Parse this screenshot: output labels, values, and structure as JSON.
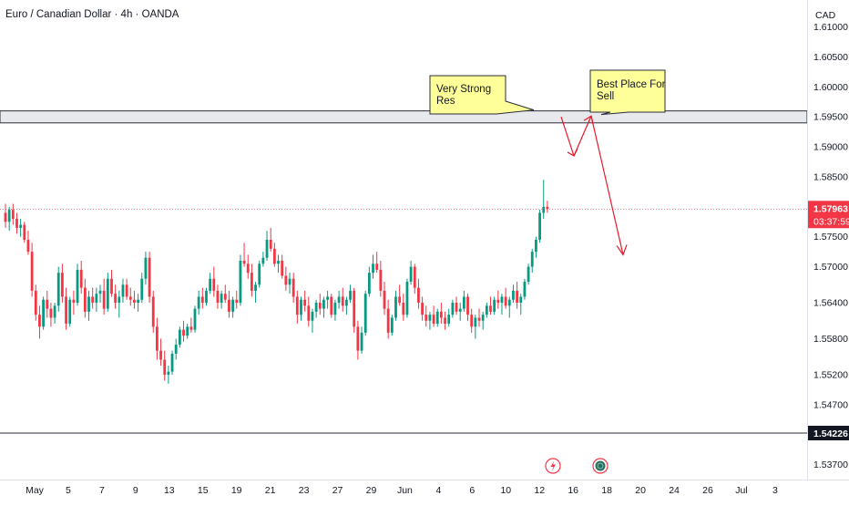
{
  "header": {
    "symbol_title": "Euro / Canadian Dollar · 4h · OANDA",
    "currency": "CAD"
  },
  "chart_data": {
    "type": "candlestick",
    "price_axis": {
      "ylim": [
        1.5345,
        1.6145
      ],
      "ticks": [
        "1.61000",
        "1.60500",
        "1.60000",
        "1.59500",
        "1.59000",
        "1.58500",
        "1.57500",
        "1.57000",
        "1.56400",
        "1.55800",
        "1.55200",
        "1.54700",
        "1.53700"
      ],
      "current_price": "1.57963",
      "countdown": "03:37:59",
      "level_label": "1.54226"
    },
    "time_axis": {
      "labels": [
        "May",
        "5",
        "7",
        "9",
        "13",
        "15",
        "19",
        "21",
        "23",
        "27",
        "29",
        "Jun",
        "4",
        "6",
        "10",
        "12",
        "16",
        "18",
        "20",
        "24",
        "26",
        "Jul",
        "3"
      ],
      "bars_visible": 145
    },
    "candles_ohlc": [
      [
        1.579,
        1.5805,
        1.5765,
        1.5775
      ],
      [
        1.5775,
        1.58,
        1.576,
        1.5795
      ],
      [
        1.5795,
        1.5805,
        1.577,
        1.578
      ],
      [
        1.578,
        1.579,
        1.5755,
        1.5765
      ],
      [
        1.5765,
        1.578,
        1.575,
        1.577
      ],
      [
        1.577,
        1.5775,
        1.574,
        1.5745
      ],
      [
        1.5745,
        1.576,
        1.572,
        1.5725
      ],
      [
        1.5725,
        1.574,
        1.565,
        1.566
      ],
      [
        1.566,
        1.567,
        1.561,
        1.562
      ],
      [
        1.562,
        1.5635,
        1.558,
        1.56
      ],
      [
        1.56,
        1.565,
        1.5595,
        1.5645
      ],
      [
        1.5645,
        1.566,
        1.5615,
        1.563
      ],
      [
        1.563,
        1.564,
        1.56,
        1.5615
      ],
      [
        1.5615,
        1.564,
        1.5605,
        1.5635
      ],
      [
        1.5635,
        1.57,
        1.5625,
        1.569
      ],
      [
        1.569,
        1.5705,
        1.564,
        1.565
      ],
      [
        1.565,
        1.5665,
        1.5595,
        1.5605
      ],
      [
        1.5605,
        1.565,
        1.56,
        1.5645
      ],
      [
        1.5645,
        1.566,
        1.562,
        1.564
      ],
      [
        1.564,
        1.5705,
        1.5635,
        1.5695
      ],
      [
        1.5695,
        1.571,
        1.5655,
        1.5665
      ],
      [
        1.5665,
        1.568,
        1.5615,
        1.5625
      ],
      [
        1.5625,
        1.566,
        1.561,
        1.565
      ],
      [
        1.565,
        1.5665,
        1.563,
        1.564
      ],
      [
        1.564,
        1.5665,
        1.5625,
        1.5655
      ],
      [
        1.5655,
        1.567,
        1.564,
        1.566
      ],
      [
        1.566,
        1.568,
        1.562,
        1.563
      ],
      [
        1.563,
        1.569,
        1.5625,
        1.568
      ],
      [
        1.568,
        1.5695,
        1.565,
        1.5655
      ],
      [
        1.5655,
        1.567,
        1.563,
        1.564
      ],
      [
        1.564,
        1.566,
        1.5615,
        1.565
      ],
      [
        1.565,
        1.568,
        1.564,
        1.567
      ],
      [
        1.567,
        1.568,
        1.5645,
        1.565
      ],
      [
        1.565,
        1.5665,
        1.5635,
        1.5645
      ],
      [
        1.5645,
        1.566,
        1.563,
        1.564
      ],
      [
        1.564,
        1.5655,
        1.5625,
        1.5645
      ],
      [
        1.5645,
        1.569,
        1.564,
        1.568
      ],
      [
        1.568,
        1.5725,
        1.567,
        1.5715
      ],
      [
        1.5715,
        1.5725,
        1.564,
        1.565
      ],
      [
        1.565,
        1.566,
        1.559,
        1.56
      ],
      [
        1.56,
        1.5615,
        1.5545,
        1.556
      ],
      [
        1.556,
        1.558,
        1.5535,
        1.5545
      ],
      [
        1.5545,
        1.556,
        1.551,
        1.552
      ],
      [
        1.552,
        1.5535,
        1.5505,
        1.5525
      ],
      [
        1.5525,
        1.556,
        1.552,
        1.5555
      ],
      [
        1.5555,
        1.558,
        1.5545,
        1.557
      ],
      [
        1.557,
        1.56,
        1.5565,
        1.5595
      ],
      [
        1.5595,
        1.561,
        1.5575,
        1.5585
      ],
      [
        1.5585,
        1.5605,
        1.558,
        1.56
      ],
      [
        1.56,
        1.5615,
        1.559,
        1.5595
      ],
      [
        1.5595,
        1.5635,
        1.559,
        1.563
      ],
      [
        1.563,
        1.566,
        1.562,
        1.565
      ],
      [
        1.565,
        1.5665,
        1.563,
        1.564
      ],
      [
        1.564,
        1.5665,
        1.5635,
        1.566
      ],
      [
        1.566,
        1.569,
        1.5655,
        1.568
      ],
      [
        1.568,
        1.57,
        1.565,
        1.566
      ],
      [
        1.566,
        1.567,
        1.563,
        1.564
      ],
      [
        1.564,
        1.566,
        1.563,
        1.5655
      ],
      [
        1.5655,
        1.567,
        1.564,
        1.5645
      ],
      [
        1.5645,
        1.566,
        1.5615,
        1.5625
      ],
      [
        1.5625,
        1.565,
        1.5615,
        1.5645
      ],
      [
        1.5645,
        1.566,
        1.563,
        1.564
      ],
      [
        1.564,
        1.572,
        1.5635,
        1.571
      ],
      [
        1.571,
        1.574,
        1.57,
        1.5705
      ],
      [
        1.5705,
        1.572,
        1.568,
        1.569
      ],
      [
        1.569,
        1.5705,
        1.565,
        1.566
      ],
      [
        1.566,
        1.5675,
        1.564,
        1.567
      ],
      [
        1.567,
        1.571,
        1.5665,
        1.5705
      ],
      [
        1.5705,
        1.5725,
        1.57,
        1.5715
      ],
      [
        1.5715,
        1.576,
        1.571,
        1.5745
      ],
      [
        1.5745,
        1.5765,
        1.5725,
        1.573
      ],
      [
        1.573,
        1.574,
        1.57,
        1.5705
      ],
      [
        1.5705,
        1.572,
        1.569,
        1.571
      ],
      [
        1.571,
        1.572,
        1.568,
        1.5685
      ],
      [
        1.5685,
        1.57,
        1.566,
        1.567
      ],
      [
        1.567,
        1.569,
        1.5655,
        1.568
      ],
      [
        1.568,
        1.569,
        1.564,
        1.565
      ],
      [
        1.565,
        1.566,
        1.5605,
        1.562
      ],
      [
        1.562,
        1.565,
        1.561,
        1.5645
      ],
      [
        1.5645,
        1.566,
        1.5625,
        1.5635
      ],
      [
        1.5635,
        1.565,
        1.56,
        1.561
      ],
      [
        1.561,
        1.563,
        1.559,
        1.5625
      ],
      [
        1.5625,
        1.5645,
        1.5615,
        1.564
      ],
      [
        1.564,
        1.5655,
        1.562,
        1.563
      ],
      [
        1.563,
        1.565,
        1.5615,
        1.5645
      ],
      [
        1.5645,
        1.566,
        1.563,
        1.565
      ],
      [
        1.565,
        1.5655,
        1.5615,
        1.562
      ],
      [
        1.562,
        1.5645,
        1.561,
        1.564
      ],
      [
        1.564,
        1.566,
        1.563,
        1.565
      ],
      [
        1.565,
        1.5665,
        1.5625,
        1.5635
      ],
      [
        1.5635,
        1.565,
        1.562,
        1.5645
      ],
      [
        1.5645,
        1.567,
        1.564,
        1.566
      ],
      [
        1.566,
        1.5665,
        1.559,
        1.56
      ],
      [
        1.56,
        1.561,
        1.5545,
        1.556
      ],
      [
        1.556,
        1.56,
        1.5555,
        1.559
      ],
      [
        1.559,
        1.566,
        1.5585,
        1.5655
      ],
      [
        1.5655,
        1.57,
        1.565,
        1.569
      ],
      [
        1.569,
        1.572,
        1.568,
        1.5705
      ],
      [
        1.5705,
        1.5725,
        1.569,
        1.5695
      ],
      [
        1.5695,
        1.571,
        1.565,
        1.566
      ],
      [
        1.566,
        1.5675,
        1.562,
        1.563
      ],
      [
        1.563,
        1.5645,
        1.558,
        1.559
      ],
      [
        1.559,
        1.562,
        1.5585,
        1.5615
      ],
      [
        1.5615,
        1.566,
        1.561,
        1.565
      ],
      [
        1.565,
        1.567,
        1.5635,
        1.564
      ],
      [
        1.564,
        1.5655,
        1.561,
        1.562
      ],
      [
        1.562,
        1.568,
        1.5615,
        1.5675
      ],
      [
        1.5675,
        1.571,
        1.567,
        1.57
      ],
      [
        1.57,
        1.5705,
        1.5655,
        1.5665
      ],
      [
        1.5665,
        1.568,
        1.563,
        1.564
      ],
      [
        1.564,
        1.565,
        1.561,
        1.562
      ],
      [
        1.562,
        1.5635,
        1.56,
        1.561
      ],
      [
        1.561,
        1.5625,
        1.5595,
        1.562
      ],
      [
        1.562,
        1.5635,
        1.56,
        1.5605
      ],
      [
        1.5605,
        1.563,
        1.56,
        1.5625
      ],
      [
        1.5625,
        1.564,
        1.5605,
        1.5615
      ],
      [
        1.5615,
        1.5625,
        1.5595,
        1.5605
      ],
      [
        1.5605,
        1.563,
        1.56,
        1.562
      ],
      [
        1.562,
        1.5645,
        1.5615,
        1.564
      ],
      [
        1.564,
        1.565,
        1.562,
        1.5625
      ],
      [
        1.5625,
        1.564,
        1.561,
        1.563
      ],
      [
        1.563,
        1.566,
        1.5625,
        1.565
      ],
      [
        1.565,
        1.5655,
        1.561,
        1.562
      ],
      [
        1.562,
        1.563,
        1.559,
        1.56
      ],
      [
        1.56,
        1.562,
        1.558,
        1.5615
      ],
      [
        1.5615,
        1.563,
        1.56,
        1.561
      ],
      [
        1.561,
        1.5625,
        1.5595,
        1.562
      ],
      [
        1.562,
        1.564,
        1.5615,
        1.5635
      ],
      [
        1.5635,
        1.565,
        1.562,
        1.5625
      ],
      [
        1.5625,
        1.565,
        1.562,
        1.5645
      ],
      [
        1.5645,
        1.566,
        1.563,
        1.564
      ],
      [
        1.564,
        1.5655,
        1.562,
        1.565
      ],
      [
        1.565,
        1.5665,
        1.563,
        1.5635
      ],
      [
        1.5635,
        1.565,
        1.5615,
        1.5645
      ],
      [
        1.5645,
        1.567,
        1.564,
        1.566
      ],
      [
        1.566,
        1.5675,
        1.563,
        1.564
      ],
      [
        1.564,
        1.5655,
        1.562,
        1.565
      ],
      [
        1.565,
        1.568,
        1.5645,
        1.5675
      ],
      [
        1.5675,
        1.5705,
        1.567,
        1.57
      ],
      [
        1.57,
        1.573,
        1.569,
        1.5725
      ],
      [
        1.5725,
        1.575,
        1.5715,
        1.5745
      ],
      [
        1.5745,
        1.5795,
        1.574,
        1.579
      ],
      [
        1.579,
        1.5845,
        1.578,
        1.58
      ],
      [
        1.58,
        1.581,
        1.579,
        1.57963
      ]
    ],
    "resistance_zone": [
      1.594,
      1.596
    ],
    "support_line": 1.54226,
    "annotations": [
      {
        "text_lines": [
          "Very Strong",
          "Res"
        ]
      },
      {
        "text_lines": [
          "Best Place For",
          "Sell"
        ]
      }
    ],
    "projection_arrow": {
      "start": 1.5945,
      "end": 1.572
    },
    "pullback_arrow": {
      "start": 1.595,
      "end": 1.5885
    },
    "colors": {
      "up": "#089981",
      "down": "#f23645",
      "arrow": "#e8192c",
      "callout_fill": "#ffff99",
      "zone_fill": "#e8e9ec",
      "current_badge": "#f23645"
    }
  }
}
